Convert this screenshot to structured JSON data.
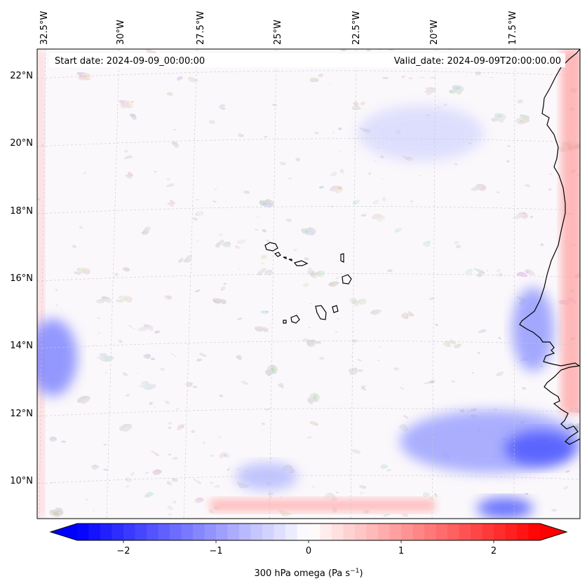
{
  "header": {
    "start_date": "Start date: 2024-09-09_00:00:00",
    "valid_date": "Valid_date: 2024-09-09T20:00:00.00"
  },
  "map": {
    "projection": "lambert-conformal",
    "lon_labels": [
      "32.5°W",
      "30°W",
      "27.5°W",
      "25°W",
      "22.5°W",
      "20°W",
      "17.5°W"
    ],
    "lat_labels": [
      "22°N",
      "20°N",
      "18°N",
      "16°N",
      "14°N",
      "12°N",
      "10°N"
    ],
    "gridlines": "dashed",
    "features": [
      "Cape Verde islands",
      "West African coastline"
    ]
  },
  "colorbar": {
    "label": "300 hPa omega (Pa s",
    "label_sup": "−1",
    "label_close": ")",
    "ticks": [
      "−2",
      "−1",
      "0",
      "1",
      "2"
    ],
    "tick_values": [
      -2,
      -1,
      0,
      1,
      2
    ],
    "range": [
      -2.5,
      2.5
    ],
    "extend": "both",
    "colormap": "bwr",
    "color_min": "#0000ff",
    "color_mid": "#ffffff",
    "color_max": "#ff0000"
  }
}
